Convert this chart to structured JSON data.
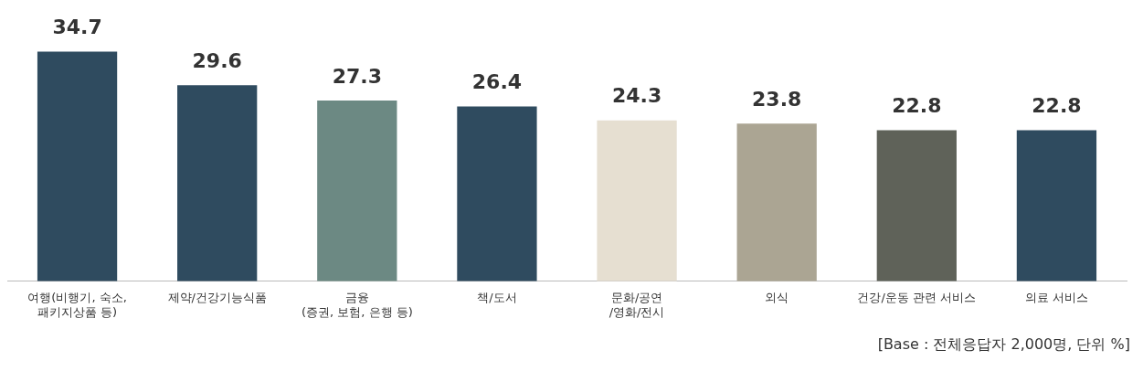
{
  "chart_data": {
    "type": "bar",
    "categories": [
      "여행(비행기, 숙소,\n패키지상품 등)",
      "제약/건강기능식품",
      "금융\n(증권, 보험, 은행 등)",
      "책/도서",
      "문화/공연\n/영화/전시",
      "외식",
      "건강/운동 관련 서비스",
      "의료 서비스"
    ],
    "values": [
      34.7,
      29.6,
      27.3,
      26.4,
      24.3,
      23.8,
      22.8,
      22.8
    ],
    "colors": [
      "#2f4b5f",
      "#2f4b5f",
      "#6c8983",
      "#2f4b5f",
      "#e6dfd1",
      "#aba593",
      "#5f6259",
      "#2f4b5f"
    ],
    "data_labels": true,
    "legend": false,
    "annotations": [
      "[Base : 전체응답자 2,000명, 단위 %]"
    ]
  }
}
